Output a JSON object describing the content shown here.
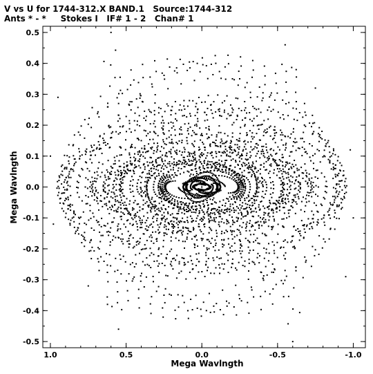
{
  "header": {
    "title_line1": "V vs U for 1744-312.X BAND.1   Source:1744-312",
    "title_line2": "Ants * - *     Stokes I   IF# 1 - 2   Chan# 1"
  },
  "chart_data": {
    "type": "scatter",
    "title": "V vs U for 1744-312.X BAND.1   Source:1744-312",
    "subtitle": "Ants * - *     Stokes I   IF# 1 - 2   Chan# 1",
    "xlabel": "Mega Wavlngth",
    "ylabel": "Mega Wavlngth",
    "xlim": [
      1.05,
      -1.08
    ],
    "ylim": [
      -0.52,
      0.52
    ],
    "x_reversed": true,
    "x_ticks": [
      1.0,
      0.5,
      0.0,
      -0.5,
      -1.0
    ],
    "x_tick_labels": [
      "1.0",
      "0.5",
      "0.0",
      "-0.5",
      "-1.0"
    ],
    "y_ticks": [
      0.5,
      0.4,
      0.3,
      0.2,
      0.1,
      0.0,
      -0.1,
      -0.2,
      -0.3,
      -0.4,
      -0.5
    ],
    "y_tick_labels": [
      "0.5",
      "0.4",
      "0.3",
      "0.2",
      "0.1",
      "0.0",
      "-0.1",
      "-0.2",
      "-0.3",
      "-0.4",
      "-0.5"
    ],
    "grid": false,
    "legend": "none",
    "marker_color": "#000000",
    "series": [
      {
        "values": [
          [
            0.08,
            0.1
          ],
          [
            -0.08,
            -0.1
          ],
          [
            0.1,
            -0.06
          ],
          [
            -0.1,
            0.06
          ],
          [
            0.0,
            0.0
          ],
          [
            0.03,
            0.02
          ],
          [
            -0.03,
            -0.02
          ],
          [
            0.35,
            0.25
          ],
          [
            -0.35,
            -0.25
          ],
          [
            0.55,
            0.05
          ],
          [
            -0.55,
            -0.05
          ],
          [
            0.25,
            -0.35
          ],
          [
            -0.25,
            0.35
          ],
          [
            0.6,
            0.5
          ],
          [
            -0.6,
            -0.5
          ],
          [
            -0.55,
            0.46
          ],
          [
            0.55,
            -0.46
          ],
          [
            0.95,
            0.29
          ],
          [
            -0.95,
            -0.29
          ],
          [
            1.0,
            0.1
          ],
          [
            -1.0,
            -0.1
          ],
          [
            0.98,
            -0.12
          ],
          [
            -0.98,
            0.12
          ],
          [
            0.75,
            -0.32
          ],
          [
            -0.75,
            0.32
          ]
        ]
      }
    ]
  }
}
